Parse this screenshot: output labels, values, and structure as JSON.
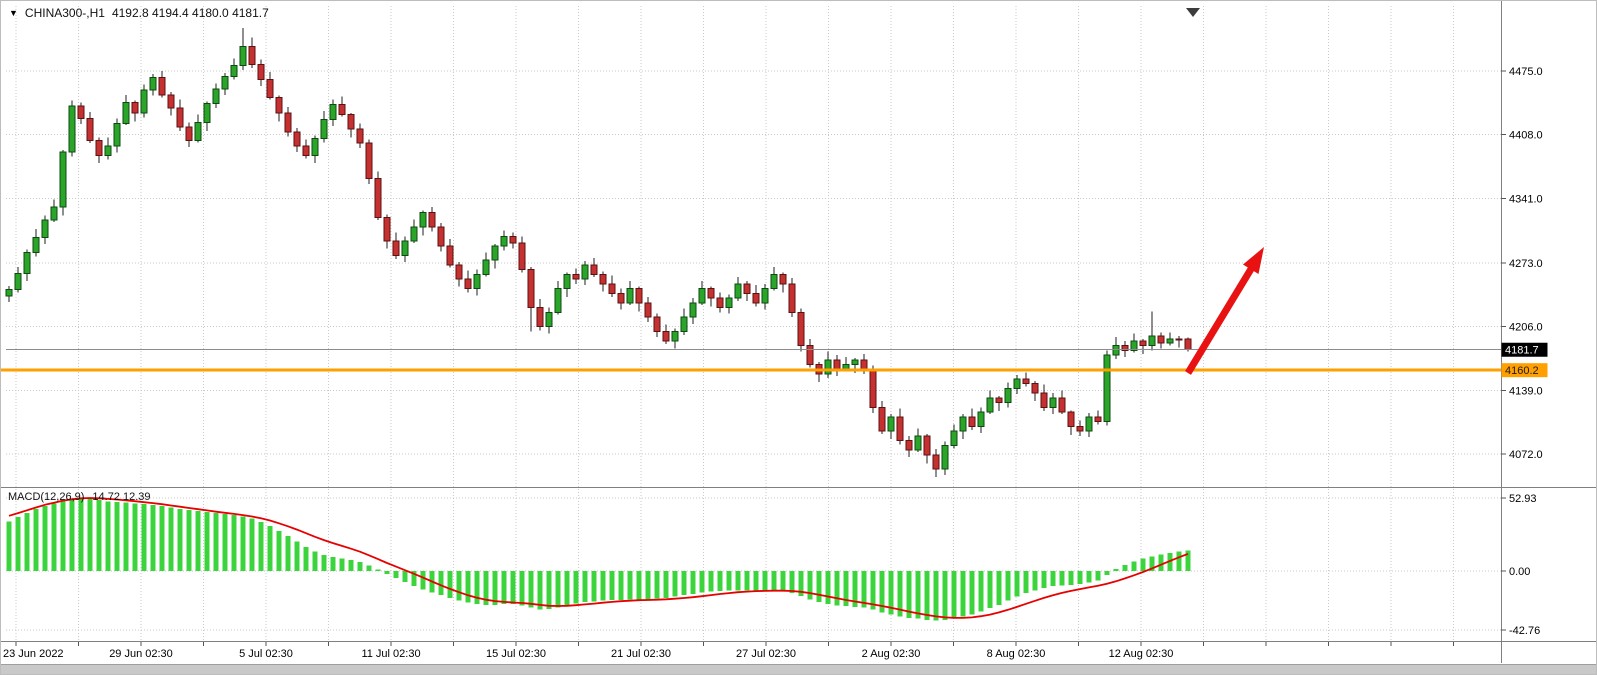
{
  "header": {
    "menu_icon": "▼",
    "symbol_period": "CHINA300-,H1",
    "ohlc": "4192.8 4194.4 4180.0 4181.7"
  },
  "indicator": {
    "label": "MACD(12,26,9)",
    "values": "14.72 12.39"
  },
  "colors": {
    "grid": "#c9c9c9",
    "wick": "#1f1f1f",
    "candle_up": "#2aa52a",
    "candle_up_border": "#0c4a10",
    "candle_down": "#c53131",
    "candle_down_border": "#5d1111",
    "macd_hist": "#3cd43c",
    "macd_signal": "#e60000",
    "bid_line": "#8c8c8c",
    "bid_badge_bg": "#000000",
    "bid_badge_text": "#ffffff",
    "hline": "#ff9f00",
    "hline_badge_text": "#1c1c1c",
    "arrow": "#e81212",
    "axis_text": "#000000",
    "separator": "#808080",
    "tick": "#555555"
  },
  "chart_data": {
    "type": "candlestick",
    "symbol": "CHINA300-",
    "timeframe": "H1",
    "title": "CHINA300-,H1",
    "y_axis": {
      "ticks": [
        {
          "label": "4475.0",
          "value": 4475
        },
        {
          "label": "4408.0",
          "value": 4408
        },
        {
          "label": "4341.0",
          "value": 4341
        },
        {
          "label": "4273.0",
          "value": 4273
        },
        {
          "label": "4206.0",
          "value": 4206
        },
        {
          "label": "4139.0",
          "value": 4139
        },
        {
          "label": "4072.0",
          "value": 4072
        }
      ]
    },
    "x_axis": {
      "labels": [
        "23 Jun 2022",
        "29 Jun 02:30",
        "5 Jul 02:30",
        "11 Jul 02:30",
        "15 Jul 02:30",
        "21 Jul 02:30",
        "27 Jul 02:30",
        "2 Aug 02:30",
        "8 Aug 02:30",
        "12 Aug 02:30"
      ]
    },
    "bid": {
      "label": "4181.7",
      "value": 4181.7
    },
    "hline": {
      "label": "4160.2",
      "value": 4160.2
    },
    "candles": [
      [
        4238,
        4249,
        4232,
        4245
      ],
      [
        4245,
        4269,
        4242,
        4262
      ],
      [
        4262,
        4287,
        4254,
        4284
      ],
      [
        4284,
        4309,
        4280,
        4300
      ],
      [
        4300,
        4323,
        4293,
        4318
      ],
      [
        4318,
        4340,
        4316,
        4332
      ],
      [
        4332,
        4392,
        4323,
        4390
      ],
      [
        4390,
        4444,
        4385,
        4438
      ],
      [
        4438,
        4442,
        4419,
        4425
      ],
      [
        4425,
        4432,
        4399,
        4402
      ],
      [
        4402,
        4405,
        4378,
        4386
      ],
      [
        4386,
        4405,
        4382,
        4396
      ],
      [
        4396,
        4425,
        4389,
        4420
      ],
      [
        4420,
        4450,
        4418,
        4442
      ],
      [
        4442,
        4444,
        4422,
        4431
      ],
      [
        4431,
        4461,
        4426,
        4455
      ],
      [
        4455,
        4472,
        4449,
        4468
      ],
      [
        4468,
        4475,
        4447,
        4450
      ],
      [
        4450,
        4453,
        4428,
        4436
      ],
      [
        4436,
        4445,
        4412,
        4416
      ],
      [
        4416,
        4421,
        4395,
        4402
      ],
      [
        4402,
        4429,
        4400,
        4421
      ],
      [
        4421,
        4443,
        4412,
        4441
      ],
      [
        4441,
        4462,
        4436,
        4456
      ],
      [
        4456,
        4473,
        4450,
        4469
      ],
      [
        4469,
        4488,
        4466,
        4481
      ],
      [
        4481,
        4520,
        4476,
        4501
      ],
      [
        4501,
        4510,
        4478,
        4482
      ],
      [
        4482,
        4487,
        4459,
        4466
      ],
      [
        4466,
        4474,
        4445,
        4447
      ],
      [
        4447,
        4449,
        4422,
        4431
      ],
      [
        4431,
        4437,
        4406,
        4411
      ],
      [
        4411,
        4415,
        4390,
        4396
      ],
      [
        4396,
        4403,
        4383,
        4386
      ],
      [
        4386,
        4407,
        4378,
        4404
      ],
      [
        4404,
        4433,
        4400,
        4424
      ],
      [
        4424,
        4445,
        4417,
        4440
      ],
      [
        4440,
        4448,
        4427,
        4429
      ],
      [
        4429,
        4431,
        4405,
        4414
      ],
      [
        4414,
        4420,
        4394,
        4399
      ],
      [
        4399,
        4403,
        4356,
        4362
      ],
      [
        4362,
        4369,
        4318,
        4321
      ],
      [
        4321,
        4324,
        4288,
        4296
      ],
      [
        4296,
        4305,
        4277,
        4281
      ],
      [
        4281,
        4301,
        4274,
        4296
      ],
      [
        4296,
        4319,
        4294,
        4311
      ],
      [
        4311,
        4328,
        4302,
        4326
      ],
      [
        4326,
        4332,
        4306,
        4311
      ],
      [
        4311,
        4315,
        4285,
        4291
      ],
      [
        4291,
        4298,
        4268,
        4271
      ],
      [
        4271,
        4274,
        4248,
        4256
      ],
      [
        4256,
        4265,
        4242,
        4246
      ],
      [
        4246,
        4266,
        4239,
        4261
      ],
      [
        4261,
        4284,
        4259,
        4276
      ],
      [
        4276,
        4293,
        4267,
        4291
      ],
      [
        4291,
        4307,
        4286,
        4301
      ],
      [
        4301,
        4305,
        4288,
        4294
      ],
      [
        4294,
        4301,
        4263,
        4266
      ],
      [
        4266,
        4269,
        4201,
        4226
      ],
      [
        4226,
        4235,
        4202,
        4206
      ],
      [
        4206,
        4226,
        4199,
        4221
      ],
      [
        4221,
        4254,
        4219,
        4246
      ],
      [
        4246,
        4263,
        4237,
        4261
      ],
      [
        4261,
        4267,
        4251,
        4256
      ],
      [
        4256,
        4275,
        4250,
        4271
      ],
      [
        4271,
        4278,
        4258,
        4261
      ],
      [
        4261,
        4264,
        4243,
        4251
      ],
      [
        4251,
        4260,
        4237,
        4241
      ],
      [
        4241,
        4246,
        4224,
        4231
      ],
      [
        4231,
        4254,
        4229,
        4246
      ],
      [
        4246,
        4248,
        4222,
        4231
      ],
      [
        4231,
        4237,
        4211,
        4216
      ],
      [
        4216,
        4220,
        4195,
        4201
      ],
      [
        4201,
        4208,
        4188,
        4191
      ],
      [
        4191,
        4204,
        4183,
        4201
      ],
      [
        4201,
        4225,
        4197,
        4216
      ],
      [
        4216,
        4236,
        4209,
        4231
      ],
      [
        4231,
        4254,
        4229,
        4246
      ],
      [
        4246,
        4248,
        4227,
        4236
      ],
      [
        4236,
        4242,
        4221,
        4226
      ],
      [
        4226,
        4240,
        4220,
        4236
      ],
      [
        4236,
        4258,
        4233,
        4251
      ],
      [
        4251,
        4254,
        4233,
        4241
      ],
      [
        4241,
        4250,
        4227,
        4231
      ],
      [
        4231,
        4251,
        4224,
        4246
      ],
      [
        4246,
        4269,
        4244,
        4261
      ],
      [
        4261,
        4263,
        4242,
        4251
      ],
      [
        4251,
        4257,
        4216,
        4221
      ],
      [
        4221,
        4225,
        4180,
        4186
      ],
      [
        4186,
        4193,
        4163,
        4166
      ],
      [
        4166,
        4169,
        4148,
        4156
      ],
      [
        4156,
        4180,
        4152,
        4171
      ],
      [
        4171,
        4176,
        4154,
        4161
      ],
      [
        4161,
        4174,
        4159,
        4166
      ],
      [
        4166,
        4173,
        4157,
        4171
      ],
      [
        4171,
        4177,
        4156,
        4161
      ],
      [
        4161,
        4165,
        4115,
        4121
      ],
      [
        4121,
        4128,
        4093,
        4096
      ],
      [
        4096,
        4114,
        4088,
        4111
      ],
      [
        4111,
        4120,
        4082,
        4086
      ],
      [
        4086,
        4091,
        4069,
        4076
      ],
      [
        4076,
        4099,
        4074,
        4091
      ],
      [
        4091,
        4093,
        4062,
        4071
      ],
      [
        4071,
        4077,
        4048,
        4056
      ],
      [
        4056,
        4085,
        4050,
        4081
      ],
      [
        4081,
        4103,
        4078,
        4096
      ],
      [
        4096,
        4114,
        4088,
        4111
      ],
      [
        4111,
        4120,
        4097,
        4101
      ],
      [
        4101,
        4121,
        4094,
        4116
      ],
      [
        4116,
        4139,
        4114,
        4131
      ],
      [
        4131,
        4133,
        4117,
        4126
      ],
      [
        4126,
        4147,
        4121,
        4141
      ],
      [
        4141,
        4155,
        4135,
        4151
      ],
      [
        4151,
        4158,
        4143,
        4146
      ],
      [
        4146,
        4149,
        4128,
        4136
      ],
      [
        4136,
        4145,
        4117,
        4121
      ],
      [
        4121,
        4136,
        4114,
        4131
      ],
      [
        4131,
        4139,
        4114,
        4116
      ],
      [
        4116,
        4118,
        4092,
        4101
      ],
      [
        4101,
        4107,
        4091,
        4096
      ],
      [
        4096,
        4115,
        4090,
        4111
      ],
      [
        4111,
        4118,
        4103,
        4106
      ],
      [
        4106,
        4181,
        4102,
        4176
      ],
      [
        4176,
        4195,
        4172,
        4186
      ],
      [
        4186,
        4191,
        4174,
        4181
      ],
      [
        4181,
        4199,
        4179,
        4191
      ],
      [
        4191,
        4193,
        4177,
        4186
      ],
      [
        4186,
        4222,
        4181,
        4196
      ],
      [
        4196,
        4200,
        4183,
        4189
      ],
      [
        4189,
        4200,
        4186,
        4193
      ],
      [
        4193,
        4196,
        4184,
        4192
      ],
      [
        4192.8,
        4194.4,
        4180,
        4181.7
      ]
    ],
    "macd": {
      "params": "12,26,9",
      "macd_last": 14.72,
      "signal_last": 12.39,
      "y_ticks": [
        {
          "label": "52.93",
          "value": 52.93
        },
        {
          "label": "0.00",
          "value": 0
        },
        {
          "label": "-42.76",
          "value": -42.76
        }
      ],
      "histogram": [
        36,
        39,
        42,
        45,
        47,
        49,
        51,
        52.5,
        52.9,
        52.5,
        51.5,
        50.5,
        50,
        49.5,
        49,
        48.5,
        48,
        47,
        46,
        45,
        44.2,
        43.5,
        42.8,
        42.2,
        41.5,
        40.5,
        39.5,
        38,
        35.5,
        32.5,
        29,
        25.5,
        21.5,
        17.5,
        14,
        11.5,
        10,
        9,
        8,
        6.5,
        4,
        1,
        -2,
        -5,
        -8,
        -11,
        -13.5,
        -15.5,
        -17.5,
        -19.5,
        -21.5,
        -23,
        -24,
        -24.5,
        -24.5,
        -24,
        -24,
        -25,
        -26.5,
        -28,
        -27.5,
        -26.5,
        -25,
        -23.5,
        -22.5,
        -22,
        -21.5,
        -21,
        -21,
        -20.5,
        -20.5,
        -20.5,
        -20,
        -19.5,
        -18.5,
        -17.5,
        -16.5,
        -15.5,
        -15,
        -14.5,
        -14,
        -14,
        -14,
        -14.5,
        -14.5,
        -14,
        -14.5,
        -16,
        -18,
        -20.5,
        -22.5,
        -24,
        -25,
        -25.5,
        -26,
        -26.5,
        -28,
        -30,
        -31.5,
        -33,
        -34,
        -34.5,
        -35.5,
        -36,
        -35.5,
        -34.5,
        -33,
        -31.5,
        -29.5,
        -27,
        -24.5,
        -21.5,
        -18.5,
        -16,
        -14,
        -12.5,
        -11,
        -10.5,
        -10,
        -9.5,
        -8.5,
        -7,
        -3,
        1.5,
        4.5,
        7,
        9,
        10.5,
        12,
        13.2,
        14.1,
        14.72
      ],
      "signal": [
        40,
        42,
        44,
        46,
        48,
        49.5,
        51,
        52,
        52.7,
        52.9,
        52.7,
        52.3,
        51.8,
        51.2,
        50.6,
        49.9,
        49.2,
        48.4,
        47.5,
        46.6,
        45.7,
        44.8,
        43.9,
        43,
        42.2,
        41.4,
        40.5,
        39.5,
        38.2,
        36.6,
        34.6,
        32.4,
        30,
        27.4,
        24.8,
        22.4,
        20.2,
        18.2,
        16.2,
        14,
        11.4,
        8.6,
        5.8,
        3.2,
        0.6,
        -2,
        -4.8,
        -7.6,
        -10.4,
        -13,
        -15.4,
        -17.6,
        -19.4,
        -20.8,
        -21.8,
        -22.4,
        -22.8,
        -23.2,
        -23.8,
        -24.6,
        -25.2,
        -25.4,
        -25.2,
        -24.8,
        -24.2,
        -23.6,
        -23,
        -22.4,
        -21.9,
        -21.5,
        -21.2,
        -21,
        -20.8,
        -20.5,
        -20.1,
        -19.6,
        -19,
        -18.3,
        -17.5,
        -16.7,
        -16,
        -15.4,
        -14.9,
        -14.6,
        -14.4,
        -14.3,
        -14.3,
        -14.5,
        -15.1,
        -16,
        -17.2,
        -18.5,
        -19.8,
        -21,
        -22.1,
        -23.1,
        -24.2,
        -25.4,
        -26.7,
        -28,
        -29.4,
        -30.7,
        -31.9,
        -32.9,
        -33.6,
        -34,
        -34,
        -33.6,
        -32.8,
        -31.6,
        -30,
        -28.1,
        -26,
        -23.8,
        -21.6,
        -19.5,
        -17.6,
        -15.9,
        -14.4,
        -13.1,
        -11.9,
        -10.7,
        -9.3,
        -7.5,
        -5.4,
        -3.1,
        -0.7,
        1.9,
        4.6,
        7.3,
        9.9,
        12.39
      ]
    },
    "annotations": [
      {
        "type": "arrow",
        "label": "bullish-arrow",
        "direction": "up-right",
        "color": "#e81212"
      }
    ]
  }
}
